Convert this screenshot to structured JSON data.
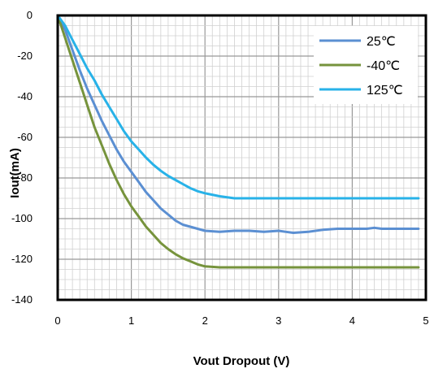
{
  "chart_data": {
    "type": "line",
    "title": "",
    "xlabel": "Vout Dropout (V)",
    "ylabel": "Iout(mA)",
    "xlim": [
      0,
      5
    ],
    "ylim": [
      -140,
      0
    ],
    "x_ticks": [
      "0",
      "1",
      "2",
      "3",
      "4",
      "5"
    ],
    "y_ticks": [
      "0",
      "-20",
      "-40",
      "-60",
      "-80",
      "-100",
      "-120",
      "-140"
    ],
    "grid": true,
    "legend_position": "top-right",
    "series": [
      {
        "name": "25℃",
        "color": "#5b8fd2",
        "x": [
          0,
          0.1,
          0.2,
          0.3,
          0.4,
          0.5,
          0.6,
          0.7,
          0.8,
          0.9,
          1.0,
          1.1,
          1.2,
          1.3,
          1.4,
          1.5,
          1.6,
          1.7,
          1.8,
          1.9,
          2.0,
          2.2,
          2.4,
          2.6,
          2.8,
          3.0,
          3.1,
          3.2,
          3.4,
          3.6,
          3.8,
          4.0,
          4.2,
          4.3,
          4.4,
          4.6,
          4.9
        ],
        "y": [
          0,
          -7,
          -17,
          -27,
          -36,
          -44,
          -52,
          -59,
          -66,
          -72,
          -77,
          -82,
          -87,
          -91,
          -95,
          -98,
          -101,
          -103,
          -104,
          -105,
          -106,
          -106.5,
          -106,
          -106,
          -106.5,
          -106,
          -106.5,
          -107,
          -106.5,
          -105.5,
          -105,
          -105,
          -105,
          -104.5,
          -105,
          -105,
          -105
        ]
      },
      {
        "name": "-40℃",
        "color": "#76933c",
        "x": [
          0,
          0.1,
          0.2,
          0.3,
          0.4,
          0.5,
          0.6,
          0.7,
          0.8,
          0.9,
          1.0,
          1.1,
          1.2,
          1.3,
          1.4,
          1.5,
          1.6,
          1.7,
          1.8,
          1.9,
          2.0,
          2.2,
          2.5,
          3.0,
          3.5,
          4.0,
          4.5,
          4.9
        ],
        "y": [
          0,
          -11,
          -22,
          -33,
          -44,
          -55,
          -64,
          -73,
          -81,
          -88,
          -94,
          -99,
          -104,
          -108,
          -112,
          -115,
          -117.5,
          -119.5,
          -121,
          -122.5,
          -123.5,
          -124,
          -124,
          -124,
          -124,
          -124,
          -124,
          -124
        ]
      },
      {
        "name": "125℃",
        "color": "#28b2e8",
        "x": [
          0,
          0.1,
          0.2,
          0.3,
          0.4,
          0.5,
          0.6,
          0.7,
          0.8,
          0.9,
          1.0,
          1.1,
          1.2,
          1.3,
          1.4,
          1.5,
          1.6,
          1.7,
          1.8,
          1.9,
          2.0,
          2.2,
          2.4,
          2.5,
          3.0,
          3.5,
          4.0,
          4.5,
          4.9
        ],
        "y": [
          0,
          -5,
          -12,
          -19,
          -26,
          -32,
          -39,
          -45,
          -51,
          -57,
          -62,
          -66,
          -70,
          -73.5,
          -76.5,
          -79,
          -81,
          -83,
          -85,
          -86.5,
          -87.5,
          -89,
          -90,
          -90,
          -90,
          -90,
          -90,
          -90,
          -90
        ]
      }
    ]
  }
}
